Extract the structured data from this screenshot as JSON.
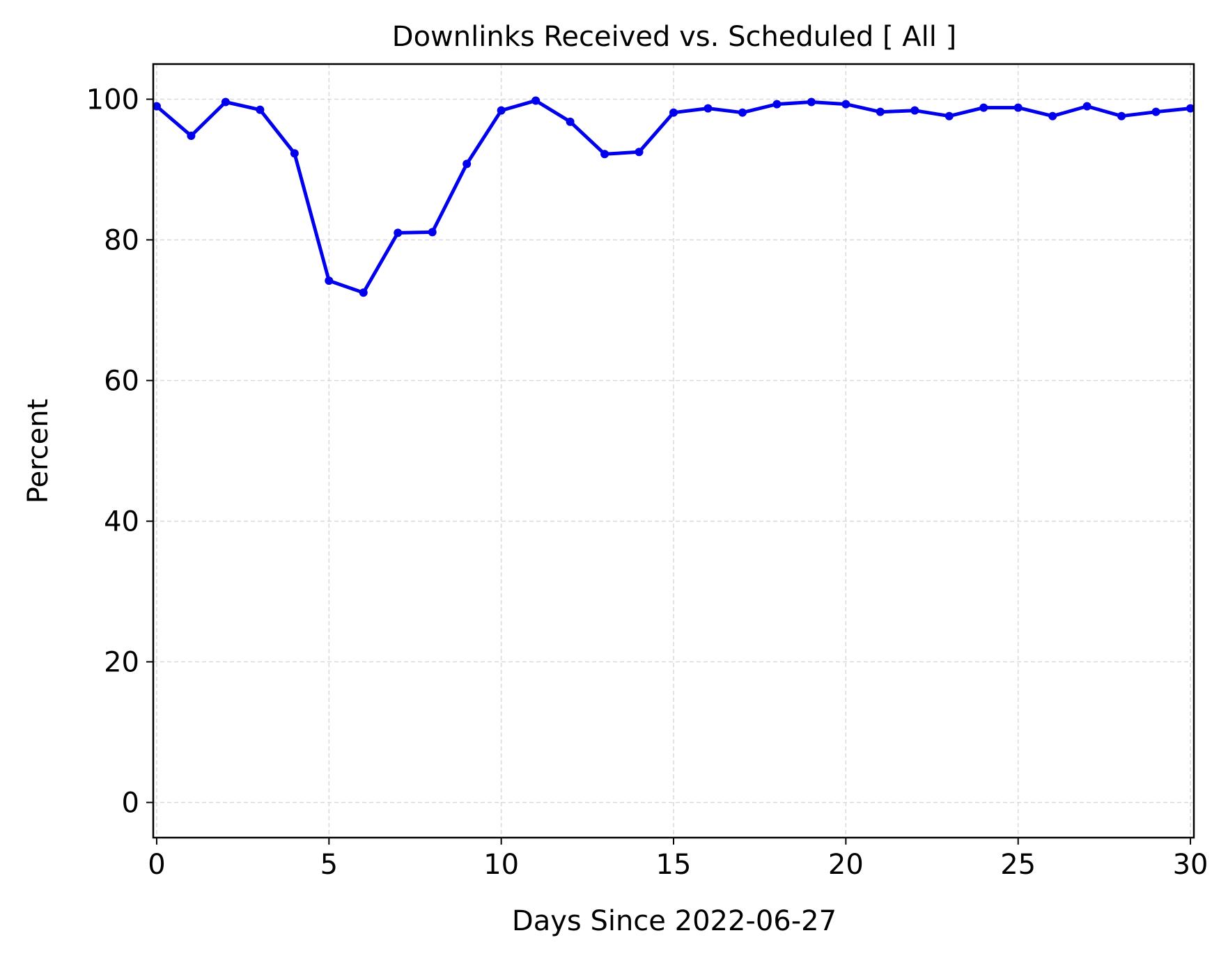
{
  "chart_data": {
    "type": "line",
    "title": "Downlinks Received vs. Scheduled [ All ]",
    "xlabel": "Days Since 2022-06-27",
    "ylabel": "Percent",
    "xlim": [
      -0.1,
      30.1
    ],
    "ylim": [
      -5,
      105
    ],
    "xticks": [
      0,
      5,
      10,
      15,
      20,
      25,
      30
    ],
    "yticks": [
      0,
      20,
      40,
      60,
      80,
      100
    ],
    "grid": true,
    "line_color": "#0000ee",
    "series": [
      {
        "x": [
          0,
          1,
          2,
          3,
          4,
          5,
          6,
          7,
          8,
          9,
          10,
          11,
          12,
          13,
          14,
          15,
          16,
          17,
          18,
          19,
          20,
          21,
          22,
          23,
          24,
          25,
          26,
          27,
          28,
          29,
          30
        ],
        "values": [
          99.0,
          94.8,
          99.6,
          98.5,
          92.3,
          74.2,
          72.5,
          81.0,
          81.1,
          90.8,
          98.4,
          99.8,
          96.8,
          92.2,
          92.5,
          98.1,
          98.7,
          98.1,
          99.3,
          99.6,
          99.3,
          98.2,
          98.4,
          97.6,
          98.8,
          98.8,
          97.6,
          99.0,
          97.6,
          98.2,
          98.7
        ]
      }
    ]
  }
}
